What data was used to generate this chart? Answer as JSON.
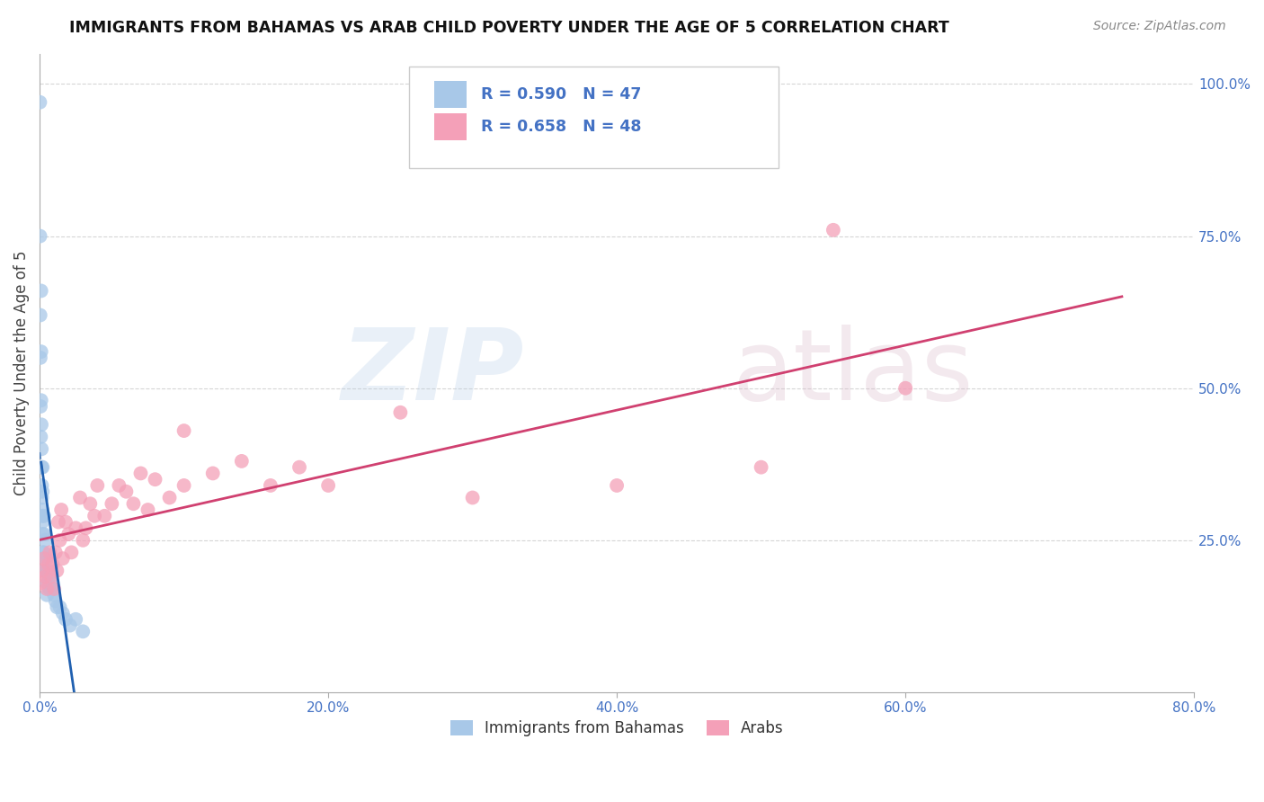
{
  "title": "IMMIGRANTS FROM BAHAMAS VS ARAB CHILD POVERTY UNDER THE AGE OF 5 CORRELATION CHART",
  "source": "Source: ZipAtlas.com",
  "ylabel": "Child Poverty Under the Age of 5",
  "legend_label_1": "Immigrants from Bahamas",
  "legend_label_2": "Arabs",
  "r1": 0.59,
  "n1": 47,
  "r2": 0.658,
  "n2": 48,
  "color_blue": "#a8c8e8",
  "color_pink": "#f4a0b8",
  "line_color_blue": "#2060b0",
  "line_color_pink": "#d04070",
  "blue_scatter_x": [
    0.0002,
    0.0003,
    0.0004,
    0.0005,
    0.0006,
    0.0008,
    0.001,
    0.001,
    0.001,
    0.0012,
    0.0013,
    0.0014,
    0.0015,
    0.0016,
    0.0017,
    0.0018,
    0.002,
    0.002,
    0.002,
    0.002,
    0.002,
    0.003,
    0.003,
    0.003,
    0.003,
    0.004,
    0.004,
    0.004,
    0.005,
    0.005,
    0.005,
    0.006,
    0.006,
    0.007,
    0.007,
    0.008,
    0.009,
    0.01,
    0.011,
    0.012,
    0.014,
    0.016,
    0.018,
    0.021,
    0.025,
    0.03,
    0.005
  ],
  "blue_scatter_y": [
    0.97,
    0.75,
    0.62,
    0.55,
    0.47,
    0.42,
    0.66,
    0.56,
    0.48,
    0.44,
    0.4,
    0.37,
    0.34,
    0.32,
    0.3,
    0.28,
    0.37,
    0.33,
    0.29,
    0.26,
    0.23,
    0.29,
    0.26,
    0.23,
    0.2,
    0.25,
    0.22,
    0.2,
    0.22,
    0.2,
    0.18,
    0.2,
    0.18,
    0.19,
    0.17,
    0.18,
    0.17,
    0.16,
    0.15,
    0.14,
    0.14,
    0.13,
    0.12,
    0.11,
    0.12,
    0.1,
    0.16
  ],
  "pink_scatter_x": [
    0.001,
    0.002,
    0.003,
    0.004,
    0.005,
    0.006,
    0.007,
    0.008,
    0.009,
    0.01,
    0.011,
    0.012,
    0.013,
    0.014,
    0.015,
    0.016,
    0.018,
    0.02,
    0.022,
    0.025,
    0.028,
    0.03,
    0.032,
    0.035,
    0.038,
    0.04,
    0.045,
    0.05,
    0.055,
    0.06,
    0.065,
    0.07,
    0.075,
    0.08,
    0.09,
    0.1,
    0.12,
    0.14,
    0.16,
    0.18,
    0.2,
    0.25,
    0.3,
    0.4,
    0.5,
    0.55,
    0.6,
    0.1
  ],
  "pink_scatter_y": [
    0.18,
    0.2,
    0.22,
    0.19,
    0.17,
    0.21,
    0.23,
    0.19,
    0.21,
    0.17,
    0.23,
    0.2,
    0.28,
    0.25,
    0.3,
    0.22,
    0.28,
    0.26,
    0.23,
    0.27,
    0.32,
    0.25,
    0.27,
    0.31,
    0.29,
    0.34,
    0.29,
    0.31,
    0.34,
    0.33,
    0.31,
    0.36,
    0.3,
    0.35,
    0.32,
    0.34,
    0.36,
    0.38,
    0.34,
    0.37,
    0.34,
    0.46,
    0.32,
    0.34,
    0.37,
    0.76,
    0.5,
    0.43
  ],
  "xlim": [
    0.0,
    0.8
  ],
  "ylim": [
    0.0,
    1.05
  ],
  "xticks": [
    0.0,
    0.2,
    0.4,
    0.6,
    0.8
  ],
  "xtick_labels": [
    "0.0%",
    "20.0%",
    "40.0%",
    "60.0%",
    "80.0%"
  ],
  "yticks_right": [
    0.25,
    0.5,
    0.75,
    1.0
  ],
  "ytick_labels_right": [
    "25.0%",
    "50.0%",
    "75.0%",
    "100.0%"
  ],
  "grid_color": "#cccccc",
  "background_color": "#ffffff",
  "title_color": "#111111",
  "axis_label_color": "#444444",
  "tick_color": "#4472c4",
  "r_n_color": "#4472c4"
}
